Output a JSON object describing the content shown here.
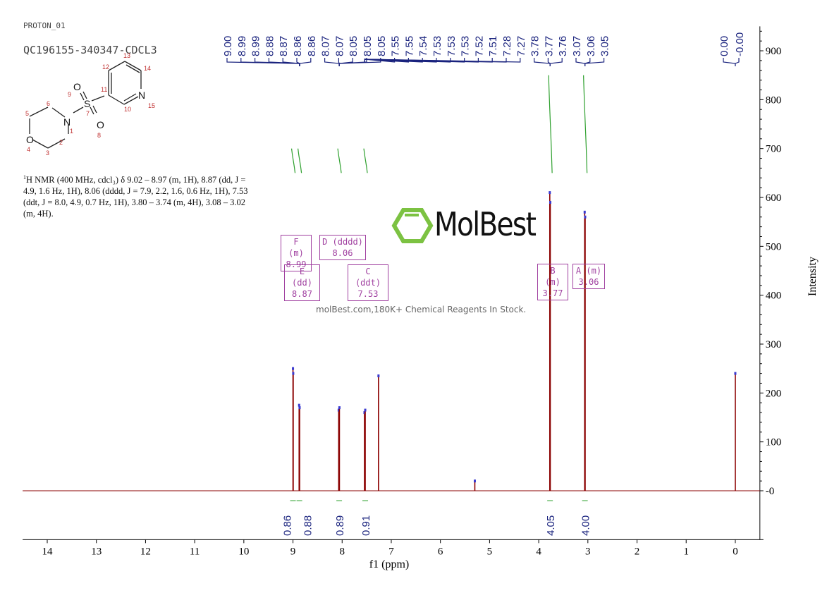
{
  "header": {
    "experiment": "PROTON_01",
    "sample": "QC196155-340347-CDCL3"
  },
  "molecule": {
    "atoms": [
      "N",
      "S",
      "O",
      "O",
      "O",
      "N"
    ],
    "numbers": [
      "1",
      "2",
      "3",
      "4",
      "5",
      "6",
      "7",
      "8",
      "9",
      "10",
      "11",
      "12",
      "13",
      "14",
      "15"
    ]
  },
  "description": {
    "sup": "1",
    "text": "H NMR (400 MHz, cdcl₃) δ 9.02 – 8.97 (m, 1H), 8.87 (dd, J = 4.9, 1.6 Hz, 1H), 8.06 (dddd, J = 7.9, 2.2, 1.6, 0.6 Hz, 1H), 7.53 (ddt, J = 8.0, 4.9, 0.7 Hz, 1H), 3.80 – 3.74 (m, 4H), 3.08 – 3.02 (m, 4H)."
  },
  "multiplets": [
    {
      "id": "F",
      "type": "(m)",
      "shift": "8.99"
    },
    {
      "id": "D",
      "type": "(dddd)",
      "shift": "8.06"
    },
    {
      "id": "E",
      "type": "(dd)",
      "shift": "8.87"
    },
    {
      "id": "C",
      "type": "(ddt)",
      "shift": "7.53"
    },
    {
      "id": "B",
      "type": "(m)",
      "shift": "3.77"
    },
    {
      "id": "A",
      "type": "(m)",
      "shift": "3.06"
    }
  ],
  "watermark": {
    "brand": "MolBest",
    "tagline": "molBest.com,180K+ Chemical Reagents In Stock."
  },
  "chart_data": {
    "type": "line",
    "xlabel": "f1 (ppm)",
    "ylabel": "Intensity",
    "xlim": [
      14.5,
      -0.5
    ],
    "ylim": [
      -100,
      950
    ],
    "x_ticks": [
      "14",
      "13",
      "12",
      "11",
      "10",
      "9",
      "8",
      "7",
      "6",
      "5",
      "4",
      "3",
      "2",
      "1",
      "0"
    ],
    "y_ticks": [
      "-0",
      "100",
      "200",
      "300",
      "400",
      "500",
      "600",
      "700",
      "800",
      "900"
    ],
    "colors": {
      "spectrum": "#8b0000",
      "labels": "#1a237e",
      "integral": "#2ea02e",
      "multiplet": "#a040a0"
    },
    "peaks": [
      {
        "ppm": 9.0,
        "intensity": 250
      },
      {
        "ppm": 8.995,
        "intensity": 240
      },
      {
        "ppm": 8.875,
        "intensity": 175
      },
      {
        "ppm": 8.865,
        "intensity": 170
      },
      {
        "ppm": 8.07,
        "intensity": 165
      },
      {
        "ppm": 8.055,
        "intensity": 170
      },
      {
        "ppm": 7.545,
        "intensity": 160
      },
      {
        "ppm": 7.53,
        "intensity": 165
      },
      {
        "ppm": 7.26,
        "intensity": 235
      },
      {
        "ppm": 5.3,
        "intensity": 20
      },
      {
        "ppm": 3.775,
        "intensity": 610
      },
      {
        "ppm": 3.765,
        "intensity": 590
      },
      {
        "ppm": 3.065,
        "intensity": 570
      },
      {
        "ppm": 3.055,
        "intensity": 560
      },
      {
        "ppm": 0.0,
        "intensity": 240
      }
    ],
    "peak_label_groups": [
      {
        "target": 8.865,
        "labels": [
          "9.00",
          "8.99",
          "8.99",
          "8.88",
          "8.87",
          "8.86",
          "8.86"
        ]
      },
      {
        "target": 8.06,
        "labels": [
          "8.07",
          "8.07",
          "8.05",
          "8.05",
          "8.05"
        ]
      },
      {
        "target": 7.54,
        "labels": [
          "7.55",
          "7.55",
          "7.54",
          "7.53",
          "7.53",
          "7.53",
          "7.52",
          "7.51",
          "7.28",
          "7.27"
        ]
      },
      {
        "target": 3.77,
        "labels": [
          "3.78",
          "3.77",
          "3.76"
        ]
      },
      {
        "target": 3.06,
        "labels": [
          "3.07",
          "3.06",
          "3.05"
        ]
      },
      {
        "target": 0.0,
        "labels": [
          "0.00",
          "-0.00"
        ]
      }
    ],
    "integrals": [
      {
        "ppm": 9.0,
        "value": "0.86"
      },
      {
        "ppm": 8.87,
        "value": "0.88"
      },
      {
        "ppm": 8.06,
        "value": "0.89"
      },
      {
        "ppm": 7.53,
        "value": "0.91"
      },
      {
        "ppm": 3.77,
        "value": "4.05"
      },
      {
        "ppm": 3.06,
        "value": "4.00"
      }
    ]
  }
}
